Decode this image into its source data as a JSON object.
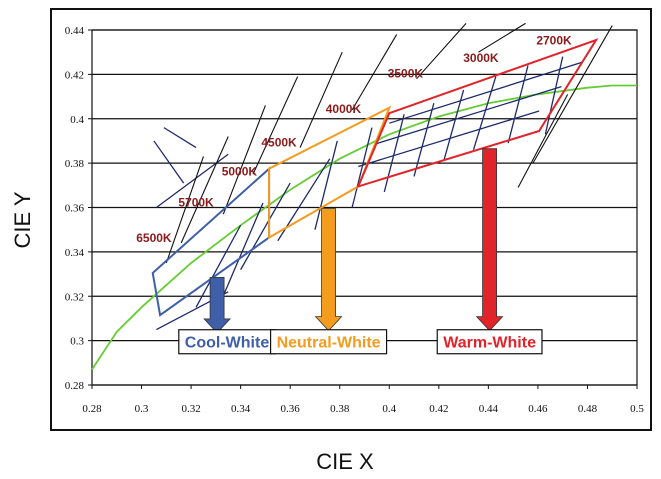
{
  "chart_data": {
    "type": "line",
    "title": "",
    "xlabel": "CIE X",
    "ylabel": "CIE Y",
    "xlim": [
      0.28,
      0.5
    ],
    "ylim": [
      0.28,
      0.44
    ],
    "xticks": [
      "0.28",
      "0.3",
      "0.32",
      "0.34",
      "0.36",
      "0.38",
      "0.4",
      "0.42",
      "0.44",
      "0.46",
      "0.48",
      "0.5"
    ],
    "yticks": [
      "0.28",
      "0.3",
      "0.32",
      "0.34",
      "0.36",
      "0.38",
      "0.4",
      "0.42",
      "0.44"
    ],
    "grid": "horizontal",
    "colors": {
      "locus": "#66cc33",
      "cool": "#3f5fa8",
      "neutral": "#f39c1e",
      "warm": "#e0242a",
      "grid_lines": "#1d2a6b",
      "cct_label": "#8b1a1a"
    },
    "series": [
      {
        "kind": "blackbody_locus",
        "x": [
          0.28,
          0.29,
          0.3,
          0.32,
          0.34,
          0.36,
          0.38,
          0.4,
          0.42,
          0.44,
          0.46,
          0.48,
          0.49,
          0.5
        ],
        "y": [
          0.287,
          0.304,
          0.315,
          0.335,
          0.352,
          0.368,
          0.382,
          0.393,
          0.401,
          0.407,
          0.411,
          0.414,
          0.415,
          0.415
        ]
      }
    ],
    "cct_labels": [
      {
        "text": "6500K",
        "x": 0.305,
        "y": 0.3445
      },
      {
        "text": "5700K",
        "x": 0.322,
        "y": 0.3605
      },
      {
        "text": "5000K",
        "x": 0.3395,
        "y": 0.3745
      },
      {
        "text": "4500K",
        "x": 0.3555,
        "y": 0.3875
      },
      {
        "text": "4000K",
        "x": 0.3815,
        "y": 0.4025
      },
      {
        "text": "3500K",
        "x": 0.4065,
        "y": 0.4185
      },
      {
        "text": "3000K",
        "x": 0.437,
        "y": 0.4255
      },
      {
        "text": "2700K",
        "x": 0.4665,
        "y": 0.4335
      }
    ],
    "regions": [
      {
        "name": "cool",
        "label": "Cool-White",
        "outline": [
          [
            0.3045,
            0.3305
          ],
          [
            0.3515,
            0.3775
          ],
          [
            0.3515,
            0.3465
          ],
          [
            0.3075,
            0.3115
          ]
        ],
        "arrow": {
          "x": 0.3305,
          "y_from": 0.3285,
          "y_to": 0.3035
        },
        "label_anchor": {
          "x": 0.3345,
          "y": 0.2995
        }
      },
      {
        "name": "neutral",
        "label": "Neutral-White",
        "outline": [
          [
            0.3515,
            0.3775
          ],
          [
            0.4,
            0.405
          ],
          [
            0.3875,
            0.3695
          ],
          [
            0.3515,
            0.3465
          ]
        ],
        "arrow": {
          "x": 0.3755,
          "y_from": 0.3595,
          "y_to": 0.3045
        },
        "label_anchor": {
          "x": 0.3755,
          "y": 0.2995
        }
      },
      {
        "name": "warm",
        "label": "Warm-White",
        "outline": [
          [
            0.4,
            0.4025
          ],
          [
            0.4835,
            0.4355
          ],
          [
            0.4605,
            0.3945
          ],
          [
            0.3875,
            0.3695
          ]
        ],
        "arrow": {
          "x": 0.4405,
          "y_from": 0.3865,
          "y_to": 0.3045
        },
        "label_anchor": {
          "x": 0.4405,
          "y": 0.2995
        }
      }
    ],
    "inner_grid_segments": [
      [
        [
          0.306,
          0.335
        ],
        [
          0.36,
          0.384
        ]
      ],
      [
        [
          0.305,
          0.317
        ],
        [
          0.39,
          0.371
        ]
      ],
      [
        [
          0.309,
          0.322
        ],
        [
          0.396,
          0.387
        ]
      ],
      [
        [
          0.306,
          0.335
        ],
        [
          0.305,
          0.322
        ]
      ],
      [
        [
          0.322,
          0.34
        ],
        [
          0.315,
          0.352
        ]
      ],
      [
        [
          0.331,
          0.349
        ],
        [
          0.315,
          0.362
        ]
      ],
      [
        [
          0.34,
          0.36
        ],
        [
          0.332,
          0.371
        ]
      ],
      [
        [
          0.355,
          0.376
        ],
        [
          0.345,
          0.382
        ]
      ],
      [
        [
          0.37,
          0.379
        ],
        [
          0.35,
          0.39
        ]
      ],
      [
        [
          0.385,
          0.393
        ],
        [
          0.36,
          0.396
        ]
      ],
      [
        [
          0.398,
          0.406
        ],
        [
          0.367,
          0.402
        ]
      ],
      [
        [
          0.41,
          0.418
        ],
        [
          0.374,
          0.407
        ]
      ],
      [
        [
          0.422,
          0.43
        ],
        [
          0.381,
          0.413
        ]
      ],
      [
        [
          0.434,
          0.443
        ],
        [
          0.386,
          0.419
        ]
      ],
      [
        [
          0.448,
          0.456
        ],
        [
          0.389,
          0.424
        ]
      ],
      [
        [
          0.463,
          0.47
        ],
        [
          0.393,
          0.428
        ]
      ],
      [
        [
          0.3875,
          0.4605
        ],
        [
          0.3785,
          0.4035
        ]
      ],
      [
        [
          0.394,
          0.4695
        ],
        [
          0.3885,
          0.4145
        ]
      ],
      [
        [
          0.4,
          0.478
        ],
        [
          0.398,
          0.4255
        ]
      ]
    ],
    "long_diagonals": [
      [
        [
          0.31,
          0.325
        ],
        [
          0.335,
          0.383
        ]
      ],
      [
        [
          0.316,
          0.335
        ],
        [
          0.344,
          0.392
        ]
      ],
      [
        [
          0.333,
          0.35
        ],
        [
          0.357,
          0.406
        ]
      ],
      [
        [
          0.345,
          0.363
        ],
        [
          0.375,
          0.419
        ]
      ],
      [
        [
          0.364,
          0.381
        ],
        [
          0.387,
          0.43
        ]
      ],
      [
        [
          0.385,
          0.403
        ],
        [
          0.404,
          0.438
        ]
      ],
      [
        [
          0.411,
          0.431
        ],
        [
          0.418,
          0.443
        ]
      ],
      [
        [
          0.436,
          0.455
        ],
        [
          0.43,
          0.443
        ]
      ],
      [
        [
          0.452,
          0.472
        ],
        [
          0.369,
          0.411
        ]
      ],
      [
        [
          0.458,
          0.49
        ],
        [
          0.38,
          0.442
        ]
      ]
    ]
  }
}
